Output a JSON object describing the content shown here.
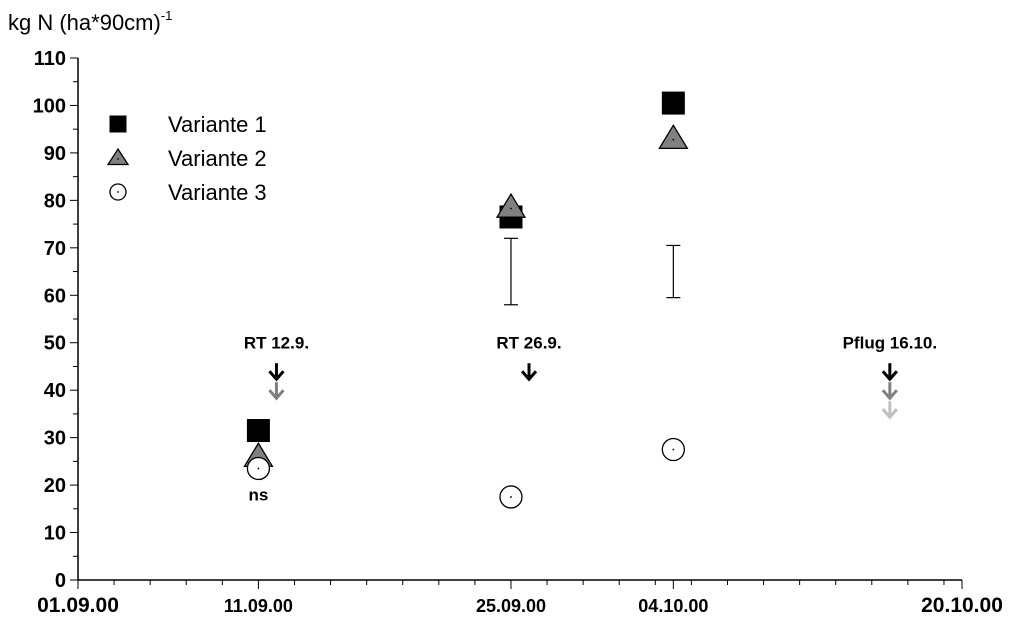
{
  "chart_data": {
    "type": "scatter",
    "title": "",
    "ylabel_base": "kg N (ha*90cm)",
    "ylabel_exp": "-1",
    "ylim": [
      0,
      110
    ],
    "y_major_ticks": [
      0,
      10,
      20,
      30,
      40,
      50,
      60,
      70,
      80,
      90,
      100,
      110
    ],
    "y_minor_step": 5,
    "x_range": [
      "01.09.00",
      "20.10.00"
    ],
    "x_tick_labels": [
      {
        "date": "01.09.00",
        "label": "01.09.00",
        "size": "big"
      },
      {
        "date": "11.09.00",
        "label": "11.09.00",
        "size": "normal"
      },
      {
        "date": "25.09.00",
        "label": "25.09.00",
        "size": "normal"
      },
      {
        "date": "04.10.00",
        "label": "04.10.00",
        "size": "normal"
      },
      {
        "date": "20.10.00",
        "label": "20.10.00",
        "size": "big"
      }
    ],
    "legend_position": "top-left",
    "series": [
      {
        "name": "Variante 1",
        "marker": "square",
        "color": "#000000",
        "points": [
          {
            "x": "11.09.00",
            "y": 31.5
          },
          {
            "x": "25.09.00",
            "y": 76.5
          },
          {
            "x": "04.10.00",
            "y": 100.5
          }
        ]
      },
      {
        "name": "Variante 2",
        "marker": "triangle",
        "color": "#808080",
        "points": [
          {
            "x": "11.09.00",
            "y": 26
          },
          {
            "x": "25.09.00",
            "y": 78.5
          },
          {
            "x": "04.10.00",
            "y": 93
          }
        ]
      },
      {
        "name": "Variante 3",
        "marker": "circle",
        "color": "#ffffff",
        "points": [
          {
            "x": "11.09.00",
            "y": 23.5
          },
          {
            "x": "25.09.00",
            "y": 17.5
          },
          {
            "x": "04.10.00",
            "y": 27.5
          }
        ]
      }
    ],
    "error_bars": [
      {
        "x": "25.09.00",
        "low": 58,
        "high": 72
      },
      {
        "x": "04.10.00",
        "low": 59.5,
        "high": 70.5
      }
    ],
    "annotations": [
      {
        "text": "RT 12.9.",
        "x": "12.09.00",
        "text_y": 50,
        "arrows": [
          {
            "y": 44,
            "color": "#000000"
          },
          {
            "y": 40,
            "color": "#808080"
          }
        ]
      },
      {
        "text": "RT 26.9.",
        "x": "26.09.00",
        "text_y": 50,
        "arrows": [
          {
            "y": 44,
            "color": "#000000"
          }
        ]
      },
      {
        "text": "Pflug 16.10.",
        "x": "16.10.00",
        "text_y": 50,
        "arrows": [
          {
            "y": 44,
            "color": "#000000"
          },
          {
            "y": 40,
            "color": "#808080"
          },
          {
            "y": 36,
            "color": "#c0c0c0"
          }
        ]
      },
      {
        "text": "ns",
        "x": "11.09.00",
        "text_y": 18,
        "arrows": []
      }
    ]
  }
}
